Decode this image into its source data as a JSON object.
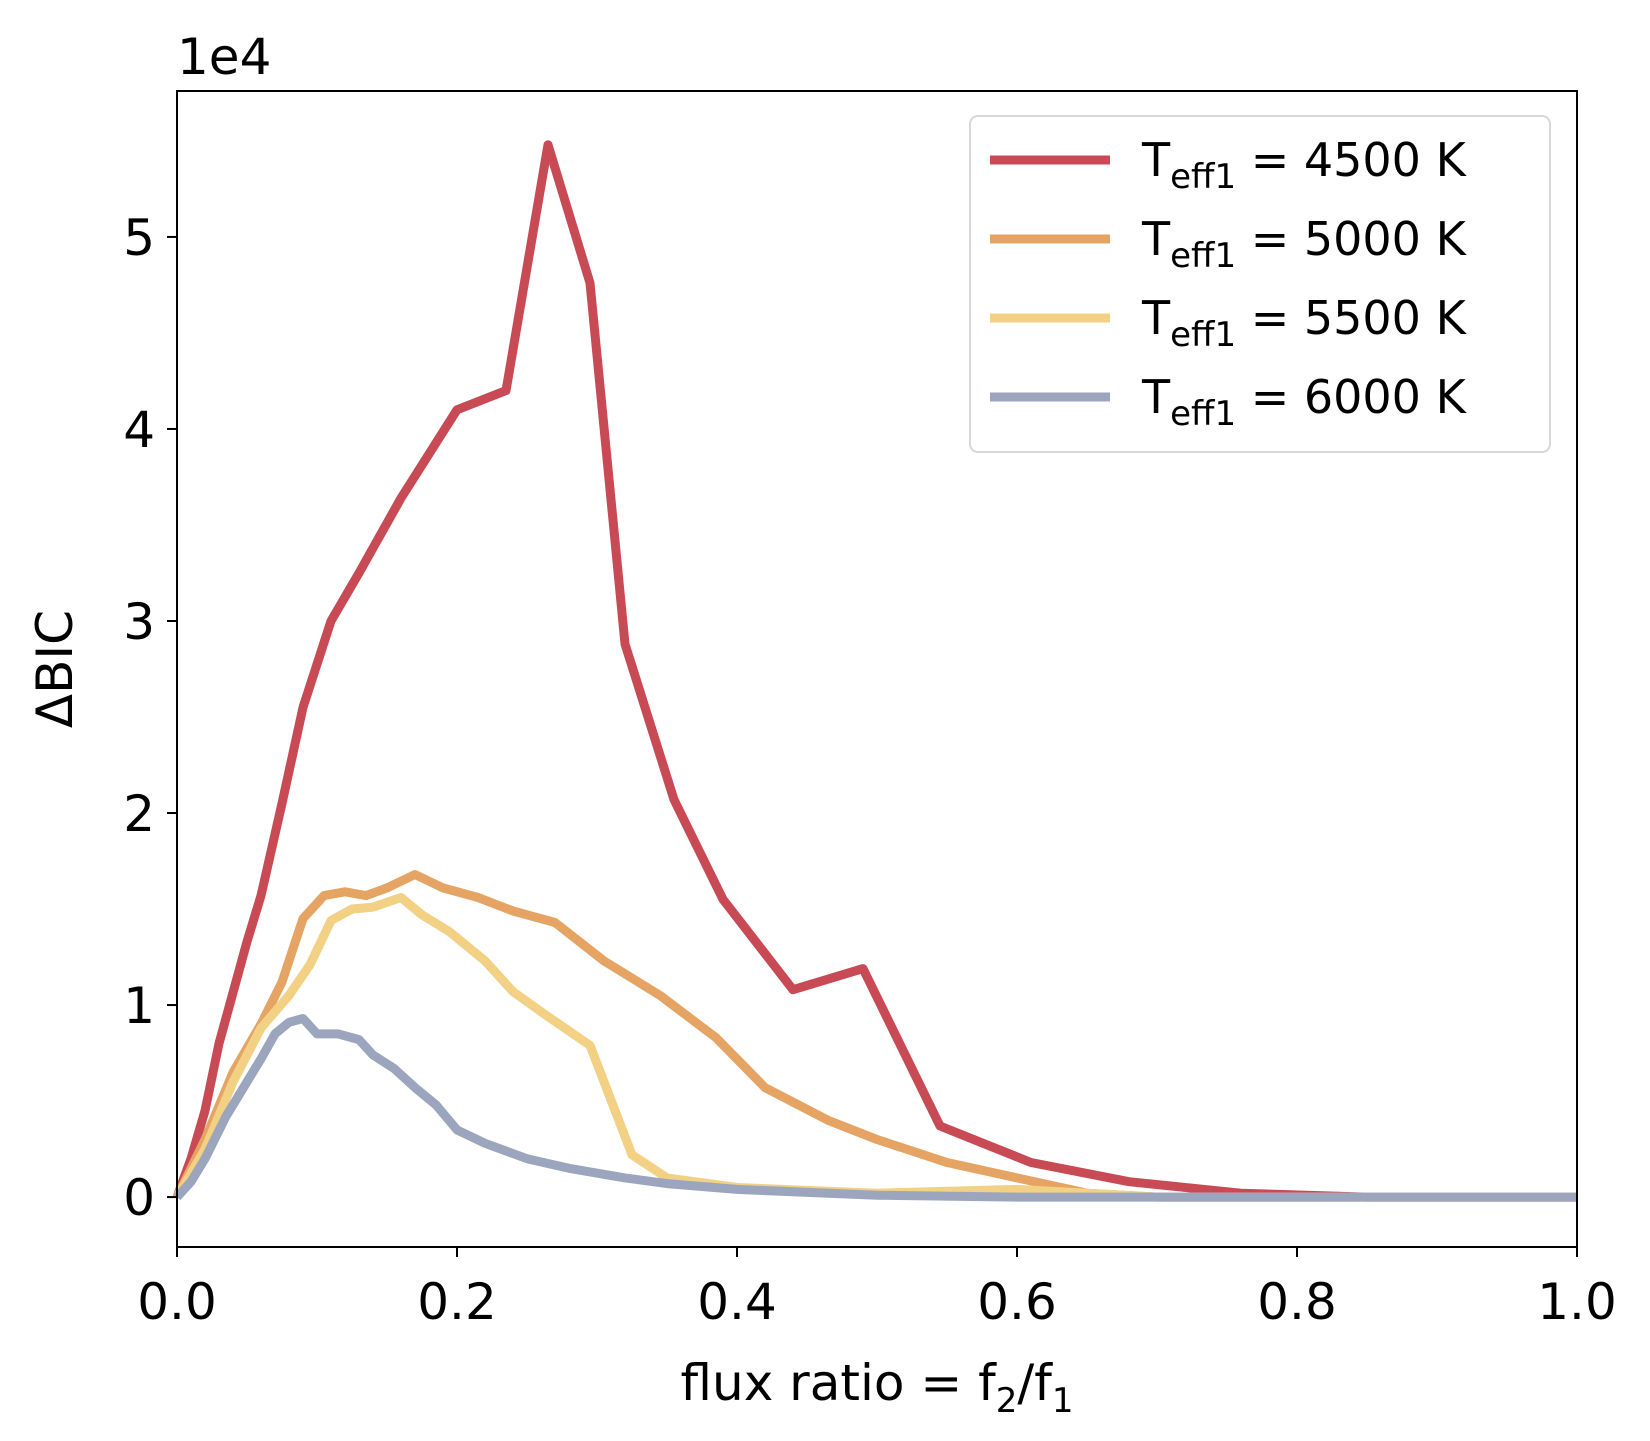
{
  "chart_data": {
    "type": "line",
    "xlabel": "flux ratio = f",
    "xlabel_parts": {
      "sub2": "2",
      "slash": "/f",
      "sub1": "1"
    },
    "ylabel": "ΔBIC",
    "y_offset_label": "1e4",
    "xlim": [
      0.0,
      1.0
    ],
    "ylim": [
      -0.26,
      5.76
    ],
    "y_scale": 10000,
    "x_ticks": [
      0.0,
      0.2,
      0.4,
      0.6,
      0.8,
      1.0
    ],
    "x_tick_labels": [
      "0.0",
      "0.2",
      "0.4",
      "0.6",
      "0.8",
      "1.0"
    ],
    "y_ticks": [
      0,
      1,
      2,
      3,
      4,
      5
    ],
    "y_tick_labels": [
      "0",
      "1",
      "2",
      "3",
      "4",
      "5"
    ],
    "grid": false,
    "legend_position": "top-right",
    "series": [
      {
        "name": "Teff1 = 4500 K",
        "label_main": "T",
        "label_sub": "eff1",
        "label_rest": " = 4500 K",
        "color": "#c84a55",
        "x": [
          0.0,
          0.01,
          0.02,
          0.03,
          0.05,
          0.06,
          0.075,
          0.09,
          0.11,
          0.13,
          0.16,
          0.2,
          0.235,
          0.265,
          0.295,
          0.32,
          0.355,
          0.39,
          0.44,
          0.49,
          0.545,
          0.61,
          0.68,
          0.76,
          0.85,
          1.0
        ],
        "values": [
          0.0,
          0.2,
          0.45,
          0.8,
          1.33,
          1.57,
          2.05,
          2.55,
          3.0,
          3.25,
          3.64,
          4.1,
          4.2,
          5.48,
          4.76,
          2.88,
          2.07,
          1.55,
          1.08,
          1.19,
          0.37,
          0.18,
          0.08,
          0.02,
          0.0,
          0.0
        ]
      },
      {
        "name": "Teff1 = 5000 K",
        "label_main": "T",
        "label_sub": "eff1",
        "label_rest": " = 5000 K",
        "color": "#e5a464",
        "x": [
          0.0,
          0.02,
          0.04,
          0.06,
          0.075,
          0.09,
          0.105,
          0.12,
          0.135,
          0.15,
          0.17,
          0.19,
          0.215,
          0.24,
          0.27,
          0.305,
          0.345,
          0.385,
          0.42,
          0.465,
          0.5,
          0.55,
          0.6,
          0.65,
          0.7,
          1.0
        ],
        "values": [
          0.0,
          0.3,
          0.65,
          0.9,
          1.12,
          1.45,
          1.57,
          1.59,
          1.57,
          1.61,
          1.68,
          1.61,
          1.56,
          1.49,
          1.43,
          1.23,
          1.05,
          0.83,
          0.57,
          0.4,
          0.3,
          0.18,
          0.1,
          0.02,
          0.0,
          0.0
        ]
      },
      {
        "name": "Teff1 = 5500 K",
        "label_main": "T",
        "label_sub": "eff1",
        "label_rest": " = 5500 K",
        "color": "#f2d084",
        "x": [
          0.0,
          0.02,
          0.04,
          0.06,
          0.08,
          0.095,
          0.11,
          0.125,
          0.14,
          0.16,
          0.175,
          0.195,
          0.22,
          0.24,
          0.265,
          0.295,
          0.325,
          0.35,
          0.4,
          0.5,
          0.6,
          0.7,
          1.0
        ],
        "values": [
          0.0,
          0.25,
          0.6,
          0.88,
          1.05,
          1.21,
          1.44,
          1.5,
          1.51,
          1.56,
          1.47,
          1.38,
          1.23,
          1.07,
          0.94,
          0.79,
          0.22,
          0.1,
          0.05,
          0.02,
          0.04,
          0.0,
          0.0
        ]
      },
      {
        "name": "Teff1 = 6000 K",
        "label_main": "T",
        "label_sub": "eff1",
        "label_rest": " = 6000 K",
        "color": "#9ba6be",
        "x": [
          0.0,
          0.01,
          0.02,
          0.035,
          0.05,
          0.06,
          0.07,
          0.08,
          0.09,
          0.1,
          0.115,
          0.13,
          0.14,
          0.155,
          0.17,
          0.185,
          0.2,
          0.22,
          0.25,
          0.28,
          0.32,
          0.35,
          0.4,
          0.5,
          0.6,
          1.0
        ],
        "values": [
          0.0,
          0.08,
          0.2,
          0.42,
          0.6,
          0.72,
          0.85,
          0.91,
          0.93,
          0.85,
          0.85,
          0.82,
          0.74,
          0.67,
          0.57,
          0.48,
          0.35,
          0.28,
          0.2,
          0.15,
          0.1,
          0.07,
          0.04,
          0.01,
          0.0,
          0.0
        ]
      }
    ]
  }
}
